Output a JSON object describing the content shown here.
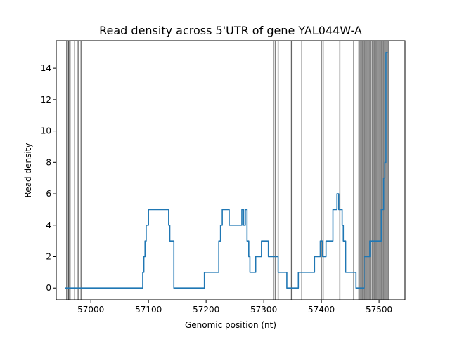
{
  "chart_data": {
    "type": "line",
    "title": "Read density across 5'UTR of gene YAL044W-A",
    "xlabel": "Genomic position (nt)",
    "ylabel": "Read density",
    "xlim": [
      56940,
      57545
    ],
    "ylim": [
      -0.75,
      15.75
    ],
    "xticks": [
      57000,
      57100,
      57200,
      57300,
      57400,
      57500
    ],
    "yticks": [
      0,
      2,
      4,
      6,
      8,
      10,
      12,
      14
    ],
    "grid": false,
    "colors": {
      "series": "#1f77b4",
      "vlines": "#000000"
    },
    "series": [
      {
        "x": [
          56955,
          57090,
          57090,
          57092,
          57092,
          57094,
          57094,
          57096,
          57096,
          57098,
          57098,
          57100,
          57100,
          57135,
          57135,
          57137,
          57137,
          57139,
          57139,
          57144,
          57144,
          57197,
          57197,
          57222,
          57222,
          57225,
          57225,
          57226,
          57226,
          57228,
          57228,
          57240,
          57240,
          57262,
          57262,
          57265,
          57265,
          57268,
          57268,
          57271,
          57271,
          57274,
          57274,
          57276,
          57276,
          57286,
          57286,
          57296,
          57296,
          57308,
          57308,
          57325,
          57325,
          57340,
          57340,
          57360,
          57360,
          57365,
          57365,
          57388,
          57388,
          57398,
          57398,
          57402,
          57402,
          57408,
          57408,
          57420,
          57420,
          57427,
          57427,
          57430,
          57430,
          57436,
          57436,
          57438,
          57438,
          57442,
          57442,
          57456,
          57456,
          57460,
          57460,
          57474,
          57474,
          57480,
          57480,
          57484,
          57484,
          57504,
          57504,
          57508,
          57508,
          57510,
          57510,
          57512,
          57512,
          57515
        ],
        "y": [
          0,
          0,
          1,
          1,
          2,
          2,
          3,
          3,
          4,
          4,
          4,
          4,
          5,
          5,
          4,
          4,
          3,
          3,
          3,
          3,
          0,
          0,
          1,
          1,
          3,
          3,
          4,
          4,
          4,
          4,
          5,
          5,
          4,
          4,
          5,
          5,
          4,
          4,
          5,
          5,
          3,
          3,
          2,
          2,
          1,
          1,
          2,
          2,
          3,
          3,
          2,
          2,
          1,
          1,
          0,
          0,
          1,
          1,
          1,
          1,
          2,
          2,
          3,
          3,
          2,
          2,
          3,
          3,
          5,
          5,
          6,
          6,
          5,
          5,
          4,
          4,
          3,
          3,
          1,
          1,
          1,
          1,
          0,
          0,
          2,
          2,
          2,
          2,
          3,
          3,
          5,
          5,
          7,
          7,
          8,
          8,
          15,
          15
        ]
      }
    ],
    "vlines": [
      56958,
      56961,
      56962,
      56964,
      56972,
      56978,
      56983,
      57317,
      57320,
      57325,
      57348,
      57349,
      57366,
      57400,
      57403,
      57432,
      57456,
      57465,
      57467,
      57469,
      57471,
      57473,
      57475,
      57477,
      57479,
      57481,
      57483,
      57485,
      57488,
      57490,
      57492,
      57494,
      57496,
      57498,
      57500,
      57502,
      57504,
      57506,
      57508,
      57510,
      57512,
      57514,
      57516
    ]
  }
}
